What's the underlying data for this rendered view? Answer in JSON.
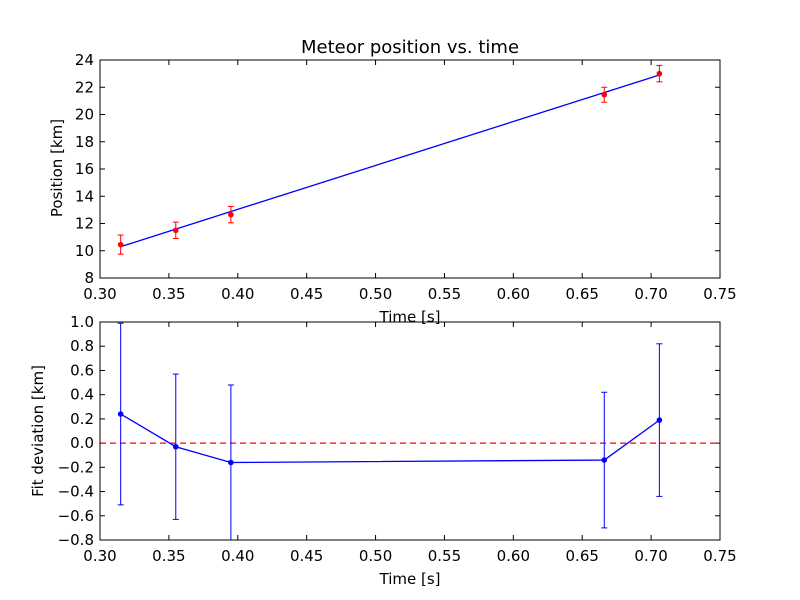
{
  "chart_data": [
    {
      "type": "line",
      "title": "Meteor position vs. time",
      "xlabel": "Time [s]",
      "ylabel": "Position [km]",
      "xlim": [
        0.3,
        0.75
      ],
      "ylim": [
        8,
        24
      ],
      "xticks": [
        "0.30",
        "0.35",
        "0.40",
        "0.45",
        "0.50",
        "0.55",
        "0.60",
        "0.65",
        "0.70",
        "0.75"
      ],
      "yticks": [
        "8",
        "10",
        "12",
        "14",
        "16",
        "18",
        "20",
        "22",
        "24"
      ],
      "grid": false,
      "series": [
        {
          "kind": "fit-line",
          "color": "#0000ff",
          "x": [
            0.315,
            0.706
          ],
          "y": [
            10.3,
            22.9
          ]
        },
        {
          "kind": "points-with-errorbars",
          "color": "#ff0000",
          "x": [
            0.315,
            0.355,
            0.395,
            0.666,
            0.706
          ],
          "y": [
            10.45,
            11.5,
            12.65,
            21.45,
            23.0
          ],
          "err": [
            0.7,
            0.6,
            0.6,
            0.55,
            0.6
          ]
        }
      ]
    },
    {
      "type": "line",
      "title": "",
      "xlabel": "Time [s]",
      "ylabel": "Fit deviation [km]",
      "xlim": [
        0.3,
        0.75
      ],
      "ylim": [
        -0.8,
        1.0
      ],
      "xticks": [
        "0.30",
        "0.35",
        "0.40",
        "0.45",
        "0.50",
        "0.55",
        "0.60",
        "0.65",
        "0.70",
        "0.75"
      ],
      "yticks": [
        "−0.8",
        "−0.6",
        "−0.4",
        "−0.2",
        "0.0",
        "0.2",
        "0.4",
        "0.6",
        "0.8",
        "1.0"
      ],
      "grid": false,
      "reference_line": {
        "y": 0.0,
        "color": "#ff0000",
        "style": "dashed"
      },
      "series": [
        {
          "kind": "line-with-errorbars",
          "color": "#0000ff",
          "x": [
            0.315,
            0.355,
            0.395,
            0.666,
            0.706
          ],
          "y": [
            0.24,
            -0.03,
            -0.16,
            -0.14,
            0.19
          ],
          "err": [
            0.75,
            0.6,
            0.64,
            0.56,
            0.63
          ]
        }
      ]
    }
  ]
}
